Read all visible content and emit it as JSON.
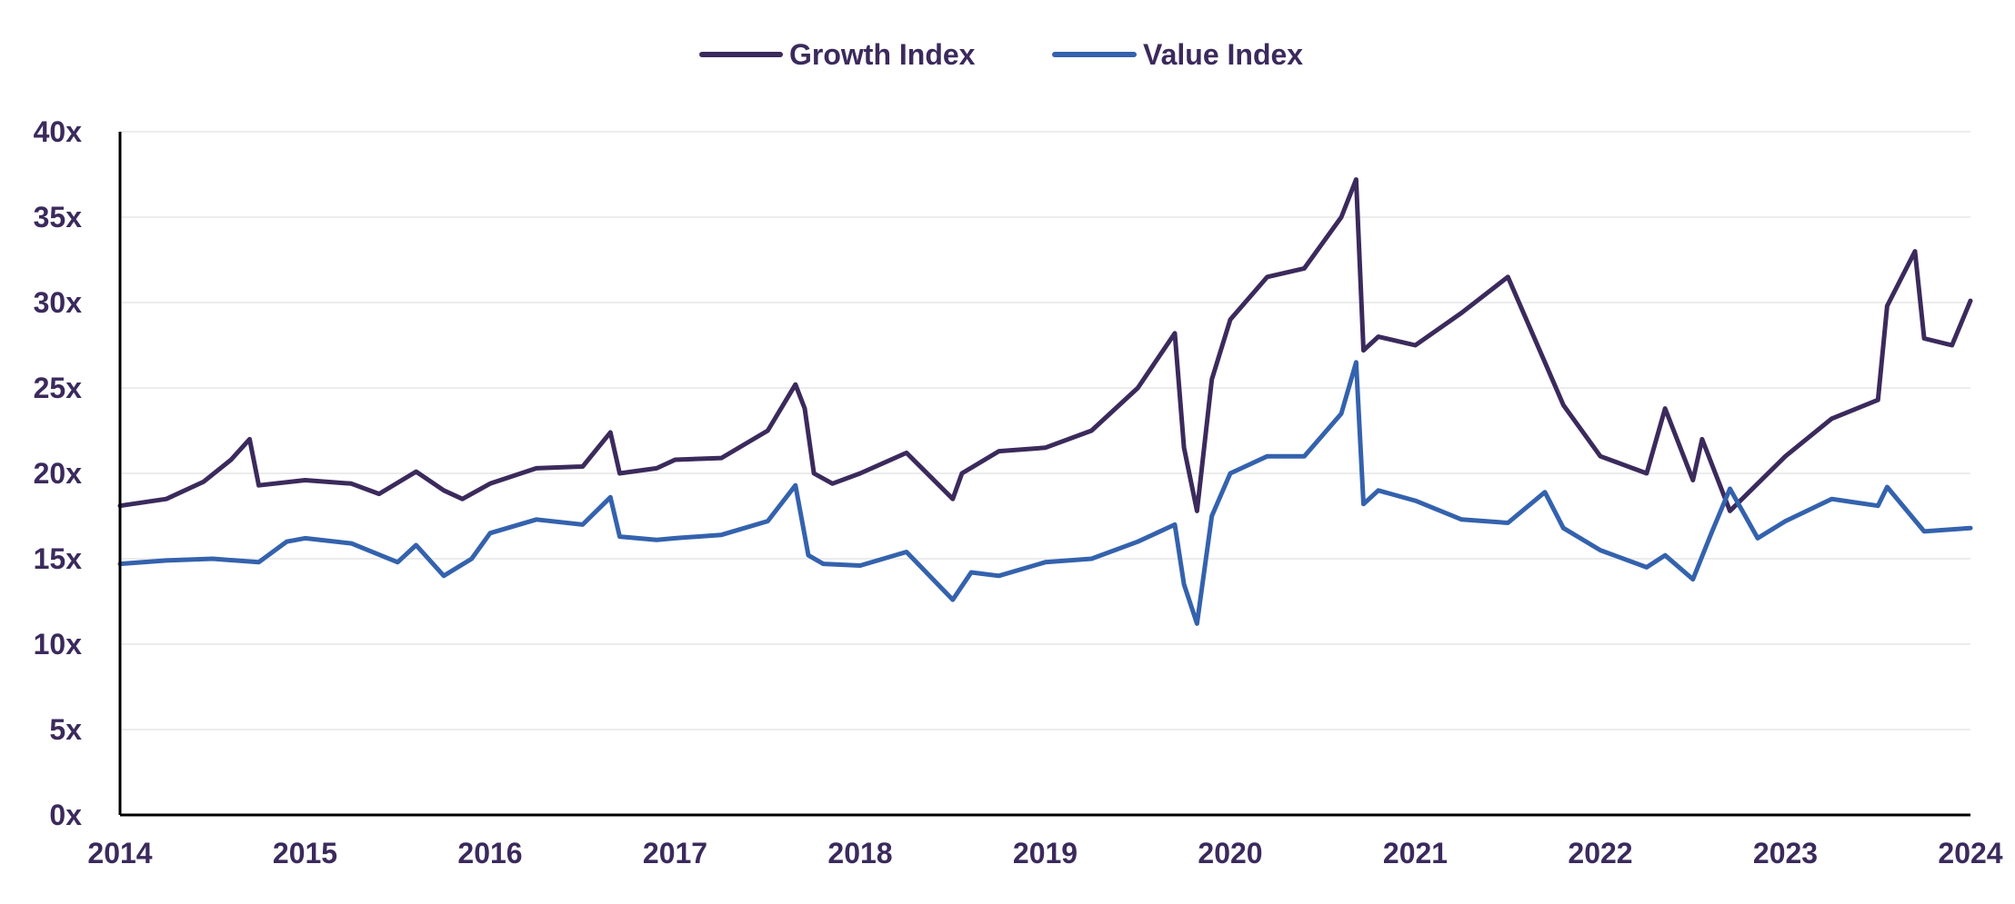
{
  "chart_data": {
    "type": "line",
    "title": "",
    "xlabel": "",
    "ylabel": "",
    "xlim": [
      2014,
      2024
    ],
    "ylim": [
      0,
      40
    ],
    "grid": true,
    "legend_position": "top-center",
    "x_ticks": [
      "2014",
      "2015",
      "2016",
      "2017",
      "2018",
      "2019",
      "2020",
      "2021",
      "2022",
      "2023",
      "2024"
    ],
    "y_ticks": [
      "0x",
      "5x",
      "10x",
      "15x",
      "20x",
      "25x",
      "30x",
      "35x",
      "40x"
    ],
    "colors": {
      "growth": "#3b2a5c",
      "value": "#3462ad",
      "text": "#3b2a5c",
      "grid": "#ececec",
      "axis": "#000000"
    },
    "series": [
      {
        "name": "Growth Index",
        "color": "#3b2a5c",
        "x": [
          2014.0,
          2014.25,
          2014.45,
          2014.6,
          2014.7,
          2014.75,
          2015.0,
          2015.25,
          2015.4,
          2015.6,
          2015.75,
          2015.85,
          2016.0,
          2016.25,
          2016.5,
          2016.65,
          2016.7,
          2016.9,
          2017.0,
          2017.25,
          2017.5,
          2017.65,
          2017.7,
          2017.75,
          2017.85,
          2018.0,
          2018.25,
          2018.5,
          2018.55,
          2018.75,
          2019.0,
          2019.25,
          2019.5,
          2019.7,
          2019.75,
          2019.82,
          2019.9,
          2020.0,
          2020.2,
          2020.4,
          2020.6,
          2020.68,
          2020.72,
          2020.8,
          2021.0,
          2021.25,
          2021.5,
          2021.7,
          2021.8,
          2022.0,
          2022.25,
          2022.35,
          2022.5,
          2022.55,
          2022.7,
          2023.0,
          2023.25,
          2023.5,
          2023.55,
          2023.7,
          2023.75,
          2023.9,
          2024.0
        ],
        "values": [
          18.1,
          18.5,
          19.5,
          20.8,
          22.0,
          19.3,
          19.6,
          19.4,
          18.8,
          20.1,
          19.0,
          18.5,
          19.4,
          20.3,
          20.4,
          22.4,
          20.0,
          20.3,
          20.8,
          20.9,
          22.5,
          25.2,
          23.8,
          20.0,
          19.4,
          20.0,
          21.2,
          18.5,
          20.0,
          21.3,
          21.5,
          22.5,
          25.0,
          28.2,
          21.5,
          17.8,
          25.5,
          29.0,
          31.5,
          32.0,
          35.0,
          37.2,
          27.2,
          28.0,
          27.5,
          29.4,
          31.5,
          26.5,
          24.0,
          21.0,
          20.0,
          23.8,
          19.6,
          22.0,
          17.8,
          21.0,
          23.2,
          24.3,
          29.8,
          33.0,
          27.9,
          27.5,
          30.1
        ]
      },
      {
        "name": "Value Index",
        "color": "#3462ad",
        "x": [
          2014.0,
          2014.25,
          2014.5,
          2014.75,
          2014.9,
          2015.0,
          2015.25,
          2015.5,
          2015.6,
          2015.75,
          2015.9,
          2016.0,
          2016.25,
          2016.5,
          2016.65,
          2016.7,
          2016.9,
          2017.0,
          2017.25,
          2017.5,
          2017.65,
          2017.72,
          2017.8,
          2018.0,
          2018.25,
          2018.5,
          2018.6,
          2018.75,
          2019.0,
          2019.25,
          2019.5,
          2019.7,
          2019.75,
          2019.82,
          2019.9,
          2020.0,
          2020.2,
          2020.4,
          2020.6,
          2020.68,
          2020.72,
          2020.8,
          2021.0,
          2021.25,
          2021.5,
          2021.7,
          2021.8,
          2022.0,
          2022.25,
          2022.35,
          2022.5,
          2022.6,
          2022.7,
          2022.85,
          2023.0,
          2023.25,
          2023.5,
          2023.55,
          2023.75,
          2024.0
        ],
        "values": [
          14.7,
          14.9,
          15.0,
          14.8,
          16.0,
          16.2,
          15.9,
          14.8,
          15.8,
          14.0,
          15.0,
          16.5,
          17.3,
          17.0,
          18.6,
          16.3,
          16.1,
          16.2,
          16.4,
          17.2,
          19.3,
          15.2,
          14.7,
          14.6,
          15.4,
          12.6,
          14.2,
          14.0,
          14.8,
          15.0,
          16.0,
          17.0,
          13.5,
          11.2,
          17.5,
          20.0,
          21.0,
          21.0,
          23.5,
          26.5,
          18.2,
          19.0,
          18.4,
          17.3,
          17.1,
          18.9,
          16.8,
          15.5,
          14.5,
          15.2,
          13.8,
          16.5,
          19.1,
          16.2,
          17.2,
          18.5,
          18.1,
          19.2,
          16.6,
          16.8
        ]
      }
    ]
  }
}
